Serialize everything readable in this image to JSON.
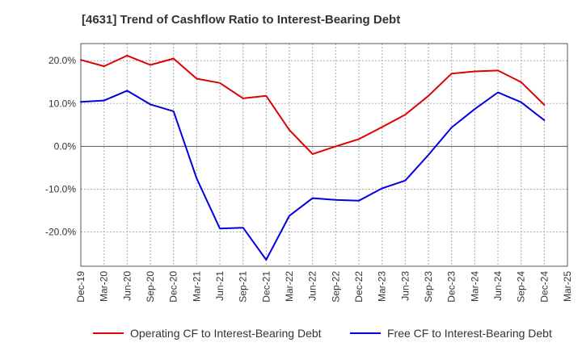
{
  "chart_data": {
    "type": "line",
    "title": "[4631]  Trend of Cashflow Ratio to Interest-Bearing Debt",
    "xlabel": "",
    "ylabel": "",
    "categories": [
      "Dec-19",
      "Mar-20",
      "Jun-20",
      "Sep-20",
      "Dec-20",
      "Mar-21",
      "Jun-21",
      "Sep-21",
      "Dec-21",
      "Mar-22",
      "Jun-22",
      "Sep-22",
      "Dec-22",
      "Mar-23",
      "Jun-23",
      "Sep-23",
      "Dec-23",
      "Mar-24",
      "Jun-24",
      "Sep-24",
      "Dec-24",
      "Mar-25"
    ],
    "y_ticks": [
      "20.0%",
      "10.0%",
      "0.0%",
      "-10.0%",
      "-20.0%"
    ],
    "y_tick_values": [
      20,
      10,
      0,
      -10,
      -20
    ],
    "ylim": [
      -28,
      24
    ],
    "grid": true,
    "legend_position": "bottom",
    "series": [
      {
        "name": "Operating CF to Interest-Bearing Debt",
        "color": "#e00000",
        "values": [
          20.2,
          18.7,
          21.2,
          19.0,
          20.5,
          15.8,
          14.8,
          11.2,
          11.8,
          3.8,
          -1.8,
          0.0,
          1.7,
          4.5,
          7.4,
          11.8,
          17.0,
          17.5,
          17.7,
          15.0,
          9.7,
          null
        ]
      },
      {
        "name": "Free CF to Interest-Bearing Debt",
        "color": "#0000e0",
        "values": [
          10.4,
          10.7,
          13.0,
          9.8,
          8.2,
          -7.5,
          -19.2,
          -19.0,
          -26.5,
          -16.2,
          -12.1,
          -12.5,
          -12.7,
          -9.8,
          -8.0,
          -2.0,
          4.4,
          8.7,
          12.6,
          10.3,
          6.1,
          null
        ]
      }
    ]
  }
}
